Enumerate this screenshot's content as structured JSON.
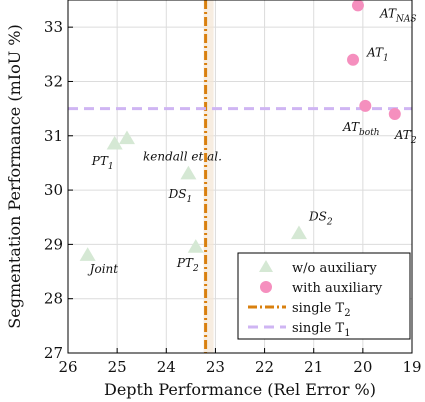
{
  "chart_data": {
    "type": "scatter",
    "xlabel": "Depth Performance (Rel Error %)",
    "ylabel": "Segmentation Performance (mIoU %)",
    "xlim": [
      26,
      19
    ],
    "ylim": [
      27,
      33.5
    ],
    "x_reversed": true,
    "x_ticks": [
      26,
      25,
      24,
      23,
      22,
      21,
      20,
      19
    ],
    "y_ticks": [
      27,
      28,
      29,
      30,
      31,
      32,
      33
    ],
    "grid": true,
    "legend_position": "bottom-right",
    "series": [
      {
        "name": "w/o auxiliary",
        "marker": "triangle",
        "color": "#d5e8d4",
        "points": [
          {
            "x": 25.6,
            "y": 28.8,
            "label": "Joint",
            "sub": ""
          },
          {
            "x": 25.05,
            "y": 30.85,
            "label": "PT",
            "sub": "1"
          },
          {
            "x": 24.8,
            "y": 30.95,
            "label": "kendall et al.",
            "sub": ""
          },
          {
            "x": 23.55,
            "y": 30.3,
            "label": "DS",
            "sub": "1"
          },
          {
            "x": 23.4,
            "y": 28.95,
            "label": "PT",
            "sub": "2"
          },
          {
            "x": 21.3,
            "y": 29.2,
            "label": "DS",
            "sub": "2"
          }
        ]
      },
      {
        "name": "with auxiliary",
        "marker": "circle",
        "color": "#f58fbe",
        "points": [
          {
            "x": 20.1,
            "y": 33.4,
            "label": "AT",
            "sub": "NAS"
          },
          {
            "x": 20.2,
            "y": 32.4,
            "label": "AT",
            "sub": "1"
          },
          {
            "x": 19.95,
            "y": 31.55,
            "label": "AT",
            "sub": "both"
          },
          {
            "x": 19.35,
            "y": 31.4,
            "label": "AT",
            "sub": "2"
          }
        ]
      }
    ],
    "reference_lines": [
      {
        "name": "single T",
        "sub": "2",
        "orientation": "vertical",
        "value": 23.2,
        "color": "#d9800f",
        "style": "dashdot"
      },
      {
        "name": "single T",
        "sub": "1",
        "orientation": "horizontal",
        "value": 31.5,
        "color": "#cfb5f3",
        "style": "dashed"
      }
    ]
  }
}
